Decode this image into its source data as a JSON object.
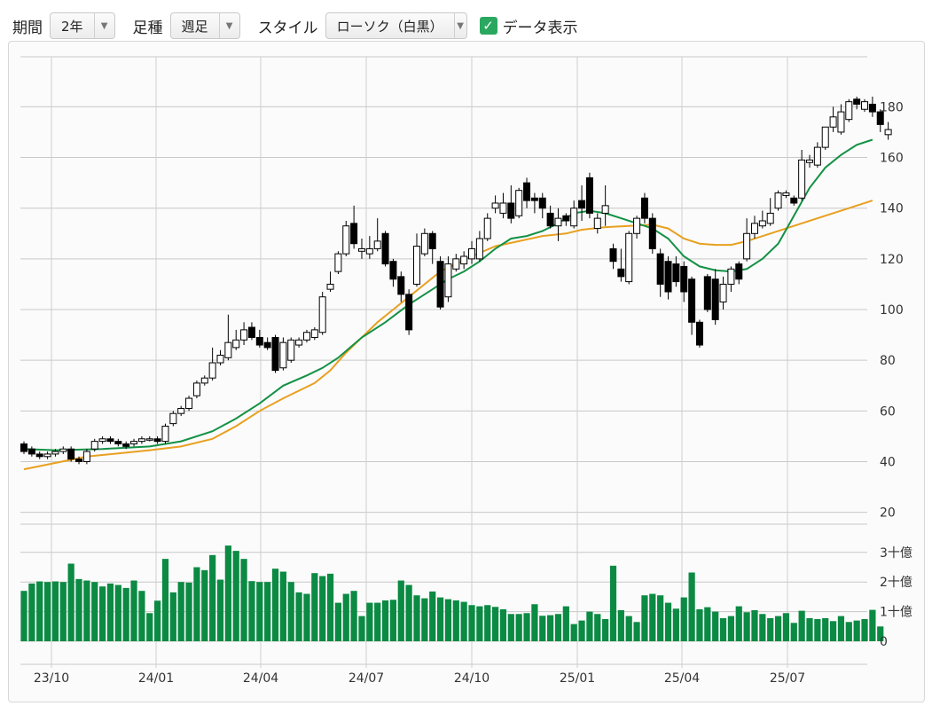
{
  "toolbar": {
    "period_label": "期間",
    "period_value": "2年",
    "interval_label": "足種",
    "interval_value": "週足",
    "style_label": "スタイル",
    "style_value": "ローソク（白黒）",
    "show_data_label": "データ表示",
    "show_data_checked": true
  },
  "chart_data": {
    "type": "candlestick",
    "x_tick_labels": [
      "23/10",
      "24/01",
      "24/04",
      "24/07",
      "24/10",
      "25/01",
      "25/04",
      "25/07"
    ],
    "price_axis": {
      "ticks": [
        "180",
        "160",
        "140",
        "120",
        "100",
        "80",
        "60",
        "40",
        "20"
      ],
      "range": [
        20,
        195
      ]
    },
    "volume_axis": {
      "ticks": [
        "3十億",
        "2十億",
        "1十億",
        "0"
      ],
      "range_billion": [
        0,
        3.5
      ]
    },
    "colors": {
      "up_candle": "#ffffff",
      "down_candle": "#000000",
      "ma_short": "#139145",
      "ma_long": "#e8a020",
      "volume": "#0b8a43"
    },
    "candles": [
      [
        47,
        44,
        48,
        43
      ],
      [
        45,
        43,
        46,
        42
      ],
      [
        43,
        42,
        44,
        41
      ],
      [
        42,
        43,
        44,
        41
      ],
      [
        43,
        44,
        45,
        42
      ],
      [
        44,
        45,
        46,
        43
      ],
      [
        45,
        41,
        46,
        40
      ],
      [
        41,
        40,
        42,
        39
      ],
      [
        40,
        44,
        45,
        39
      ],
      [
        45,
        48,
        49,
        44
      ],
      [
        48,
        49,
        50,
        47
      ],
      [
        49,
        48,
        50,
        47
      ],
      [
        48,
        47,
        49,
        46
      ],
      [
        47,
        46,
        48,
        45
      ],
      [
        47,
        48,
        49,
        46
      ],
      [
        48,
        49,
        50,
        47
      ],
      [
        49,
        49,
        50,
        48
      ],
      [
        49,
        48,
        50,
        47
      ],
      [
        48,
        54,
        55,
        47
      ],
      [
        55,
        59,
        60,
        54
      ],
      [
        59,
        61,
        62,
        58
      ],
      [
        61,
        65,
        66,
        60
      ],
      [
        66,
        71,
        72,
        65
      ],
      [
        71,
        73,
        74,
        70
      ],
      [
        73,
        79,
        85,
        72
      ],
      [
        79,
        82,
        84,
        78
      ],
      [
        81,
        87,
        98,
        80
      ],
      [
        85,
        88,
        92,
        84
      ],
      [
        88,
        92,
        95,
        86
      ],
      [
        93,
        89,
        95,
        88
      ],
      [
        89,
        86,
        92,
        85
      ],
      [
        87,
        85,
        89,
        84
      ],
      [
        89,
        76,
        90,
        75
      ],
      [
        77,
        87,
        89,
        76
      ],
      [
        80,
        88,
        89,
        79
      ],
      [
        86,
        88,
        89,
        85
      ],
      [
        88,
        91,
        92,
        87
      ],
      [
        89,
        92,
        93,
        88
      ],
      [
        91,
        105,
        107,
        90
      ],
      [
        108,
        110,
        115,
        107
      ],
      [
        115,
        122,
        123,
        114
      ],
      [
        122,
        133,
        135,
        121
      ],
      [
        134,
        126,
        141,
        124
      ],
      [
        123,
        124,
        128,
        120
      ],
      [
        122,
        124,
        129,
        120
      ],
      [
        124,
        127,
        136,
        123
      ],
      [
        130,
        118,
        131,
        117
      ],
      [
        119,
        112,
        120,
        109
      ],
      [
        113,
        106,
        115,
        103
      ],
      [
        106,
        92,
        108,
        90
      ],
      [
        110,
        125,
        130,
        109
      ],
      [
        122,
        130,
        132,
        121
      ],
      [
        130,
        124,
        131,
        118
      ],
      [
        119,
        101,
        121,
        100
      ],
      [
        105,
        118,
        121,
        103
      ],
      [
        116,
        120,
        122,
        115
      ],
      [
        118,
        121,
        123,
        116
      ],
      [
        120,
        124,
        127,
        118
      ],
      [
        120,
        128,
        131,
        119
      ],
      [
        128,
        136,
        138,
        127
      ],
      [
        140,
        142,
        145,
        138
      ],
      [
        138,
        142,
        146,
        136
      ],
      [
        142,
        136,
        149,
        134
      ],
      [
        137,
        147,
        148,
        136
      ],
      [
        150,
        143,
        152,
        140
      ],
      [
        144,
        143,
        146,
        138
      ],
      [
        144,
        140,
        146,
        136
      ],
      [
        138,
        133,
        141,
        132
      ],
      [
        133,
        136,
        140,
        127
      ],
      [
        137,
        135,
        138,
        133
      ],
      [
        133,
        140,
        143,
        132
      ],
      [
        143,
        140,
        149,
        135
      ],
      [
        152,
        138,
        154,
        136
      ],
      [
        132,
        136,
        138,
        130
      ],
      [
        138,
        141,
        149,
        133
      ],
      [
        124,
        119,
        126,
        116
      ],
      [
        116,
        113,
        124,
        111
      ],
      [
        111,
        130,
        131,
        110
      ],
      [
        130,
        136,
        137,
        128
      ],
      [
        144,
        136,
        146,
        134
      ],
      [
        136,
        124,
        138,
        122
      ],
      [
        122,
        110,
        124,
        105
      ],
      [
        119,
        107,
        121,
        104
      ],
      [
        118,
        111,
        121,
        109
      ],
      [
        117,
        107,
        119,
        103
      ],
      [
        112,
        95,
        113,
        90
      ],
      [
        95,
        86,
        96,
        85
      ],
      [
        113,
        100,
        114,
        99
      ],
      [
        112,
        96,
        116,
        94
      ],
      [
        103,
        110,
        113,
        100
      ],
      [
        110,
        116,
        117,
        107
      ],
      [
        118,
        112,
        119,
        110
      ],
      [
        120,
        130,
        136,
        119
      ],
      [
        130,
        134,
        137,
        128
      ],
      [
        133,
        135,
        139,
        132
      ],
      [
        134,
        138,
        144,
        133
      ],
      [
        140,
        146,
        147,
        139
      ],
      [
        145,
        146,
        147,
        144
      ],
      [
        144,
        142,
        145,
        141
      ],
      [
        144,
        159,
        163,
        143
      ],
      [
        158,
        159,
        161,
        156
      ],
      [
        157,
        164,
        166,
        156
      ],
      [
        164,
        172,
        172,
        163
      ],
      [
        172,
        176,
        180,
        170
      ],
      [
        170,
        178,
        181,
        169
      ],
      [
        175,
        182,
        183,
        174
      ],
      [
        183,
        181,
        184,
        179
      ],
      [
        179,
        182,
        183,
        178
      ],
      [
        181,
        178,
        184,
        176
      ],
      [
        178,
        173,
        179,
        170
      ],
      [
        169,
        171,
        174,
        167
      ]
    ],
    "ma_short": [
      [
        0,
        45
      ],
      [
        4,
        44.5
      ],
      [
        10,
        45
      ],
      [
        16,
        46
      ],
      [
        20,
        48
      ],
      [
        24,
        52
      ],
      [
        27,
        57
      ],
      [
        30,
        63
      ],
      [
        33,
        70
      ],
      [
        36,
        74
      ],
      [
        38,
        77
      ],
      [
        40,
        81
      ],
      [
        43,
        89
      ],
      [
        46,
        95
      ],
      [
        49,
        102
      ],
      [
        52,
        108
      ],
      [
        54,
        112
      ],
      [
        56,
        115
      ],
      [
        58,
        119
      ],
      [
        60,
        124
      ],
      [
        62,
        128
      ],
      [
        64,
        129
      ],
      [
        66,
        131
      ],
      [
        68,
        134
      ],
      [
        70,
        138
      ],
      [
        72,
        139
      ],
      [
        74,
        138
      ],
      [
        76,
        136
      ],
      [
        78,
        134
      ],
      [
        80,
        132
      ],
      [
        82,
        128
      ],
      [
        84,
        121
      ],
      [
        86,
        117
      ],
      [
        88,
        115.5
      ],
      [
        90,
        115
      ],
      [
        92,
        116
      ],
      [
        94,
        120
      ],
      [
        96,
        126
      ],
      [
        98,
        137
      ],
      [
        100,
        148
      ],
      [
        102,
        156
      ],
      [
        104,
        161
      ],
      [
        106,
        165
      ],
      [
        108,
        167
      ]
    ],
    "ma_long": [
      [
        0,
        37
      ],
      [
        8,
        42
      ],
      [
        16,
        44.5
      ],
      [
        20,
        46
      ],
      [
        24,
        49
      ],
      [
        27,
        54
      ],
      [
        30,
        60
      ],
      [
        33,
        65
      ],
      [
        35,
        68
      ],
      [
        37,
        71
      ],
      [
        39,
        76
      ],
      [
        41,
        83
      ],
      [
        43,
        89
      ],
      [
        45,
        95
      ],
      [
        47,
        100
      ],
      [
        49,
        105
      ],
      [
        51,
        110
      ],
      [
        53,
        115
      ],
      [
        55,
        118
      ],
      [
        57,
        121
      ],
      [
        60,
        125
      ],
      [
        63,
        127
      ],
      [
        66,
        129
      ],
      [
        69,
        130
      ],
      [
        71,
        131.5
      ],
      [
        74,
        132.5
      ],
      [
        77,
        133
      ],
      [
        80,
        133.5
      ],
      [
        82,
        132
      ],
      [
        84,
        128
      ],
      [
        86,
        126
      ],
      [
        88,
        125.5
      ],
      [
        90,
        125.5
      ],
      [
        92,
        127
      ],
      [
        95,
        130
      ],
      [
        98,
        133
      ],
      [
        101,
        136
      ],
      [
        104,
        139
      ],
      [
        108,
        143
      ]
    ],
    "volume_billion": [
      1.7,
      1.95,
      2.02,
      2.0,
      2.02,
      2.0,
      2.62,
      2.1,
      2.05,
      2.0,
      1.85,
      1.95,
      1.9,
      1.8,
      2.05,
      1.7,
      0.95,
      1.37,
      2.78,
      1.65,
      2.0,
      1.98,
      2.5,
      2.4,
      2.91,
      2.08,
      3.23,
      3.05,
      2.78,
      2.03,
      2.0,
      2.0,
      2.45,
      2.35,
      2.0,
      1.65,
      1.6,
      2.3,
      2.2,
      2.28,
      1.3,
      1.6,
      1.7,
      0.85,
      1.3,
      1.3,
      1.38,
      1.4,
      2.05,
      1.9,
      1.55,
      1.45,
      1.68,
      1.48,
      1.42,
      1.38,
      1.33,
      1.22,
      1.18,
      1.22,
      1.16,
      1.08,
      0.92,
      0.92,
      0.95,
      1.25,
      0.86,
      0.88,
      0.92,
      1.18,
      0.58,
      0.7,
      1.0,
      0.92,
      0.75,
      2.55,
      1.05,
      0.85,
      0.65,
      1.55,
      1.6,
      1.55,
      1.3,
      1.1,
      1.48,
      2.32,
      1.08,
      1.15,
      1.0,
      0.78,
      0.85,
      1.18,
      0.98,
      1.05,
      0.92,
      0.78,
      0.85,
      0.95,
      0.62,
      1.03,
      0.78,
      0.75,
      0.78,
      0.68,
      0.85,
      0.65,
      0.7,
      0.75,
      1.06,
      0.5
    ]
  }
}
